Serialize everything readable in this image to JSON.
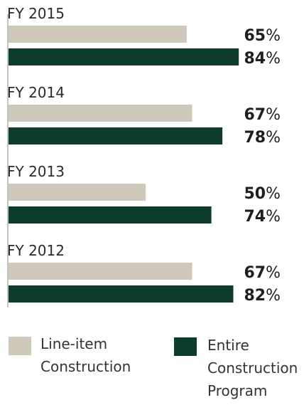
{
  "colors": {
    "line_item": "#cfc9bc",
    "entire_program": "#0d3b2c",
    "axis": "#8a8a8a"
  },
  "legend": [
    {
      "series": "line_item",
      "lines": [
        "Line-item",
        "Construction"
      ]
    },
    {
      "series": "entire_program",
      "lines": [
        "Entire",
        "Construction",
        "Program"
      ]
    }
  ],
  "chart_data": {
    "type": "bar",
    "orientation": "horizontal",
    "categories": [
      "FY 2015",
      "FY 2014",
      "FY 2013",
      "FY 2012"
    ],
    "series": [
      {
        "key": "line_item",
        "name": "Line-item Construction",
        "values": [
          65,
          67,
          50,
          67
        ]
      },
      {
        "key": "entire_program",
        "name": "Entire Construction Program",
        "values": [
          84,
          78,
          74,
          82
        ]
      }
    ],
    "unit": "%",
    "xlim": [
      0,
      100
    ],
    "grid": false,
    "legend_position": "bottom"
  }
}
